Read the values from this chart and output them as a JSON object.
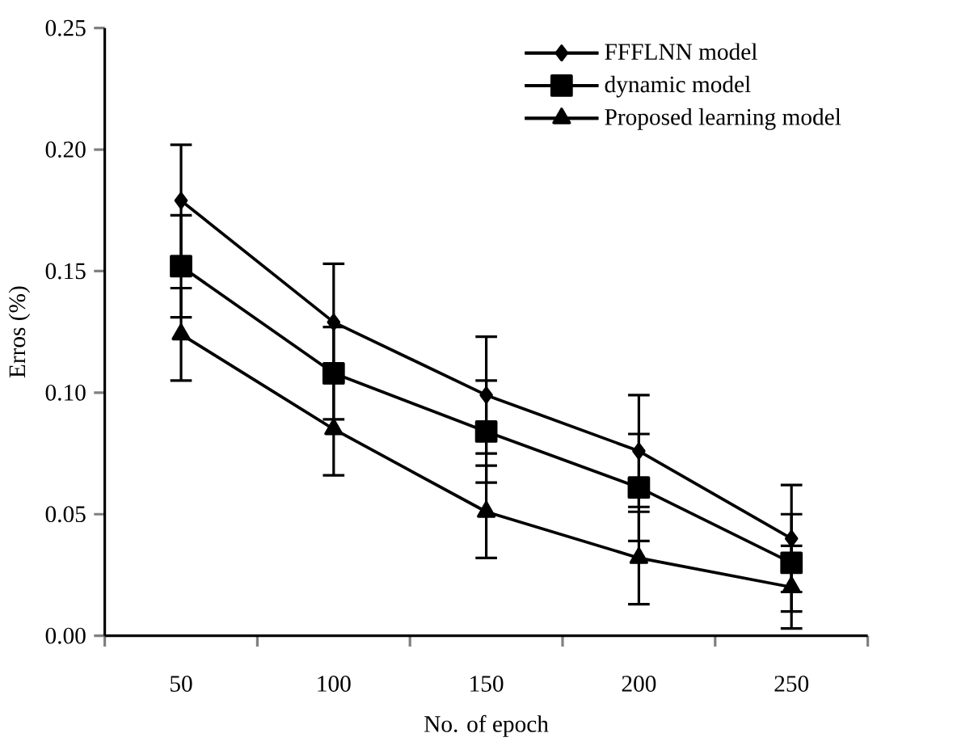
{
  "chart_data": {
    "type": "line",
    "xlabel": "No. of epoch",
    "ylabel": "Erros (%)",
    "categories": [
      "50",
      "100",
      "150",
      "200",
      "250"
    ],
    "ylim": [
      0,
      0.25
    ],
    "yticks": [
      {
        "value": 0,
        "label": "0.00"
      },
      {
        "value": 0.05,
        "label": "0.05"
      },
      {
        "value": 0.1,
        "label": "0.10"
      },
      {
        "value": 0.15,
        "label": "0.15"
      },
      {
        "value": 0.2,
        "label": "0.20"
      },
      {
        "value": 0.25,
        "label": "0.25"
      }
    ],
    "legend": "top right",
    "grid": false,
    "line_style": "solid",
    "series": [
      {
        "name": "FFFLNN model",
        "color": "#000000",
        "marker": "diamond",
        "values": [
          0.179,
          0.129,
          0.099,
          0.076,
          0.04
        ],
        "errors": [
          0.023,
          0.024,
          0.024,
          0.023,
          0.022
        ]
      },
      {
        "name": "dynamic model",
        "color": "#000000",
        "marker": "square",
        "values": [
          0.152,
          0.108,
          0.084,
          0.061,
          0.03
        ],
        "errors": [
          0.021,
          0.019,
          0.021,
          0.022,
          0.02
        ]
      },
      {
        "name": "Proposed learning model",
        "color": "#000000",
        "marker": "triangle",
        "values": [
          0.124,
          0.085,
          0.051,
          0.032,
          0.02
        ],
        "errors": [
          0.019,
          0.019,
          0.019,
          0.019,
          0.017
        ]
      }
    ]
  }
}
